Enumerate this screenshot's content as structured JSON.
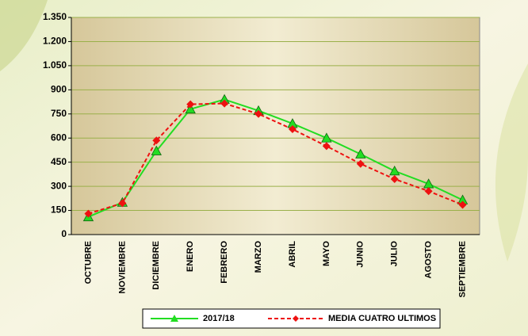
{
  "chart_data": {
    "type": "line",
    "categories": [
      "OCTUBRE",
      "NOVIEMBRE",
      "DICIEMBRE",
      "ENERO",
      "FEBRERO",
      "MARZO",
      "ABRIL",
      "MAYO",
      "JUNIO",
      "JULIO",
      "AGOSTO",
      "SEPTIEMBRE"
    ],
    "series": [
      {
        "name": "2017/18",
        "color": "#22dd22",
        "marker": "triangle",
        "dashed": false,
        "values": [
          110,
          200,
          520,
          780,
          840,
          770,
          690,
          600,
          500,
          395,
          315,
          215
        ]
      },
      {
        "name": "MEDIA CUATRO ULTIMOS",
        "color": "#ee1111",
        "marker": "diamond",
        "dashed": true,
        "values": [
          130,
          195,
          585,
          810,
          815,
          750,
          655,
          550,
          440,
          345,
          270,
          185
        ]
      }
    ],
    "ylim": [
      0,
      1350
    ],
    "yticks": [
      0,
      150,
      300,
      450,
      600,
      750,
      900,
      {
        "value": 1050,
        "label": "1.050"
      },
      {
        "value": 1200,
        "label": "1.200"
      },
      {
        "value": 1350,
        "label": "1.350"
      }
    ],
    "grid": true,
    "legend": "bottom"
  }
}
